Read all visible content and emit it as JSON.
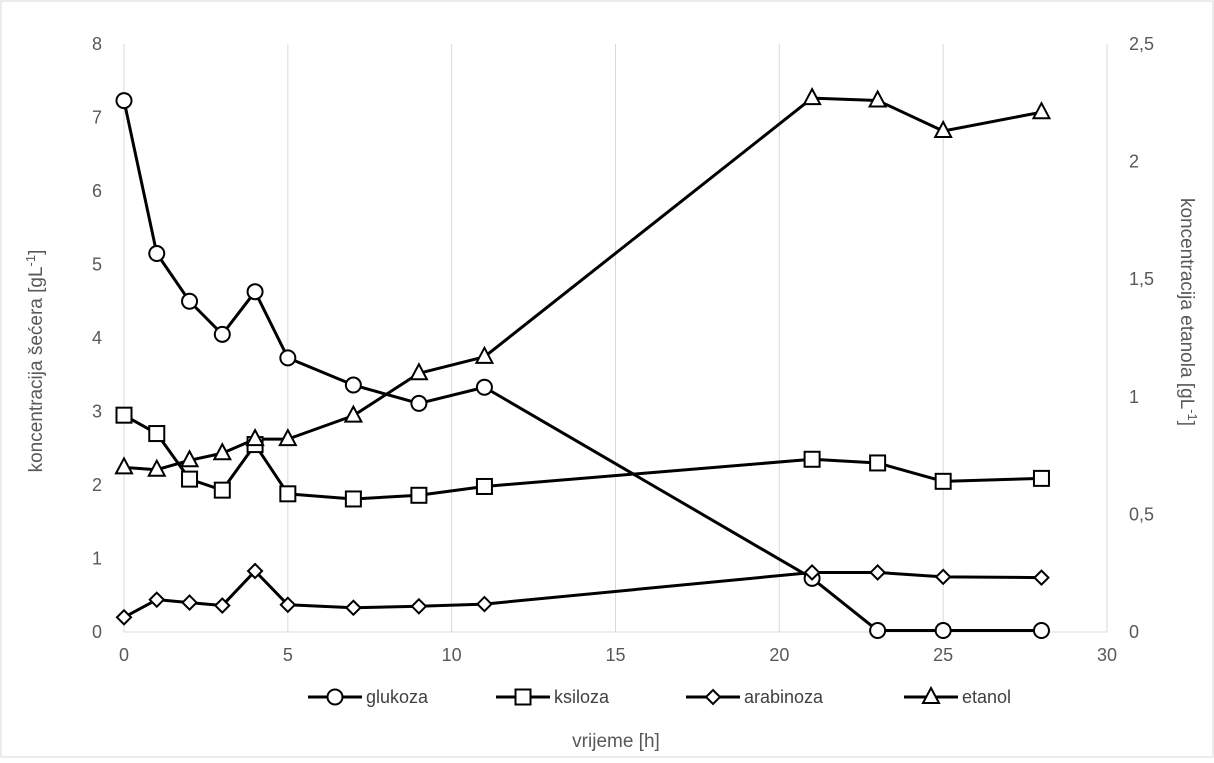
{
  "chart_data": {
    "type": "line",
    "xlabel": "vrijeme [h]",
    "ylabel_left": {
      "text": "koncentracija šećera  [gL",
      "sup": "-1",
      "tail": "]"
    },
    "ylabel_right": {
      "text": "koncentracija etanola [gL",
      "sup": "-1",
      "tail": "]"
    },
    "xlim": [
      0,
      30
    ],
    "ylim_left": [
      0,
      8
    ],
    "ylim_right": [
      0,
      2.5
    ],
    "x_ticks": [
      "0",
      "5",
      "10",
      "15",
      "20",
      "25",
      "30"
    ],
    "y_left_ticks": [
      "0",
      "1",
      "2",
      "3",
      "4",
      "5",
      "6",
      "7",
      "8"
    ],
    "y_right_ticks": [
      "0",
      "0,5",
      "1",
      "1,5",
      "2",
      "2,5"
    ],
    "grid": "vertical",
    "legend_position": "bottom",
    "line_color": "#000000",
    "series": [
      {
        "name": "glukoza",
        "marker": "circle",
        "axis": "left",
        "x": [
          0,
          1,
          2,
          3,
          4,
          5,
          7,
          9,
          11,
          21,
          23,
          25,
          28
        ],
        "y": [
          7.23,
          5.15,
          4.5,
          4.05,
          4.63,
          3.73,
          3.36,
          3.11,
          3.33,
          0.73,
          0.02,
          0.02,
          0.02
        ]
      },
      {
        "name": "ksiloza",
        "marker": "square",
        "axis": "left",
        "x": [
          0,
          1,
          2,
          3,
          4,
          5,
          7,
          9,
          11,
          21,
          23,
          25,
          28
        ],
        "y": [
          2.95,
          2.7,
          2.08,
          1.93,
          2.55,
          1.88,
          1.81,
          1.86,
          1.98,
          2.35,
          2.3,
          2.05,
          2.09
        ]
      },
      {
        "name": "arabinoza",
        "marker": "diamond",
        "axis": "left",
        "x": [
          0,
          1,
          2,
          3,
          4,
          5,
          7,
          9,
          11,
          21,
          23,
          25,
          28
        ],
        "y": [
          0.2,
          0.44,
          0.4,
          0.36,
          0.83,
          0.37,
          0.33,
          0.35,
          0.38,
          0.81,
          0.81,
          0.75,
          0.74
        ]
      },
      {
        "name": "etanol",
        "marker": "triangle",
        "axis": "right",
        "x": [
          0,
          1,
          2,
          3,
          4,
          5,
          7,
          9,
          11,
          21,
          23,
          25,
          28
        ],
        "y": [
          0.7,
          0.69,
          0.73,
          0.76,
          0.82,
          0.82,
          0.92,
          1.1,
          1.17,
          2.27,
          2.26,
          2.13,
          2.21
        ]
      }
    ]
  }
}
